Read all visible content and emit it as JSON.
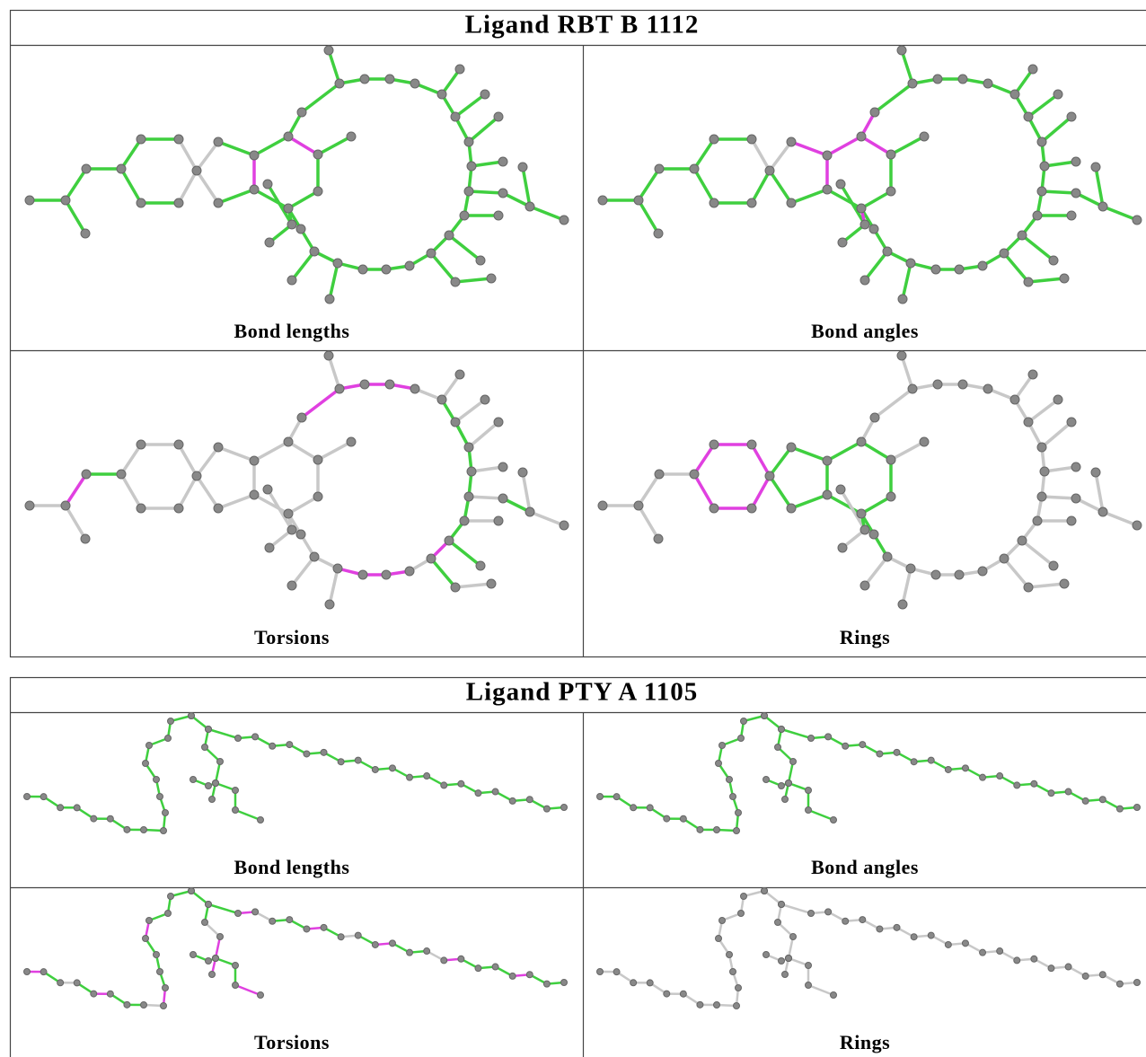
{
  "tables": [
    {
      "title": "Ligand RBT B 1112",
      "captions": [
        "Bond lengths",
        "Bond angles",
        "Torsions",
        "Rings"
      ]
    },
    {
      "title": "Ligand PTY A 1105",
      "captions": [
        "Bond lengths",
        "Bond angles",
        "Torsions",
        "Rings"
      ]
    }
  ]
}
